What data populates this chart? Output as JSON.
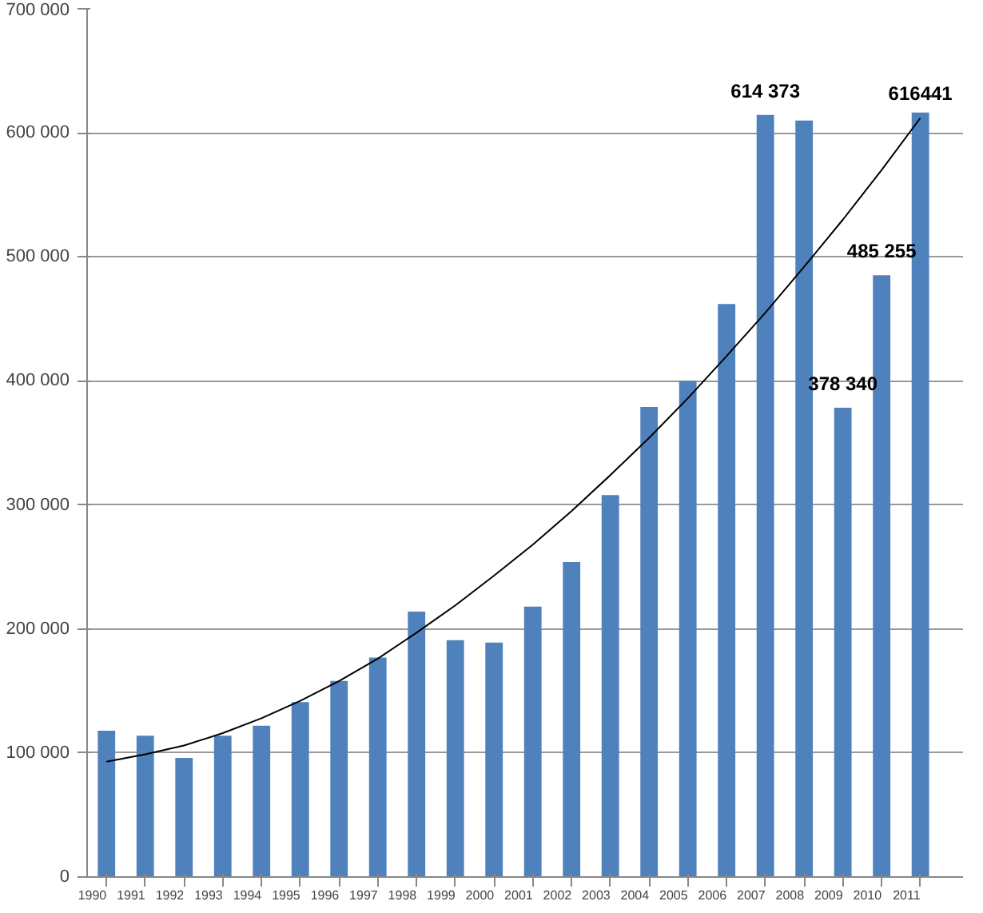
{
  "chart_data": {
    "type": "bar",
    "categories": [
      "1990",
      "1991",
      "1992",
      "1993",
      "1994",
      "1995",
      "1996",
      "1997",
      "1998",
      "1999",
      "2000",
      "2001",
      "2002",
      "2003",
      "2004",
      "2005",
      "2006",
      "2007",
      "2008",
      "2009",
      "2010",
      "2011"
    ],
    "series": [
      {
        "color": "#4f81bd",
        "values": [
          118000,
          114000,
          96000,
          114000,
          122000,
          141000,
          158000,
          177000,
          214000,
          191000,
          189000,
          218000,
          254000,
          308000,
          379000,
          400000,
          462000,
          614373,
          610000,
          378340,
          485255,
          616441
        ],
        "value_labels": [
          null,
          null,
          null,
          null,
          null,
          null,
          null,
          null,
          null,
          null,
          null,
          null,
          null,
          null,
          null,
          null,
          null,
          "614 373",
          null,
          "378 340",
          "485 255",
          "616441"
        ]
      },
      {
        "type": "line",
        "color": "#000000",
        "values": [
          93000,
          99000,
          106000,
          116000,
          128000,
          142000,
          158000,
          176000,
          197000,
          219000,
          243000,
          268000,
          295000,
          324000,
          354000,
          386000,
          420000,
          455000,
          492000,
          530000,
          570000,
          612000
        ]
      }
    ],
    "ylim": [
      0,
      700000
    ],
    "yticks": [
      {
        "value": 0,
        "label": "0"
      },
      {
        "value": 100000,
        "label": "100 000"
      },
      {
        "value": 200000,
        "label": "200 000"
      },
      {
        "value": 300000,
        "label": "300 000"
      },
      {
        "value": 400000,
        "label": "400 000"
      },
      {
        "value": 500000,
        "label": "500 000"
      },
      {
        "value": 600000,
        "label": "600 000"
      },
      {
        "value": 700000,
        "label": "700 000"
      }
    ],
    "grid": "y",
    "marker": "none",
    "line_style": "solid"
  }
}
